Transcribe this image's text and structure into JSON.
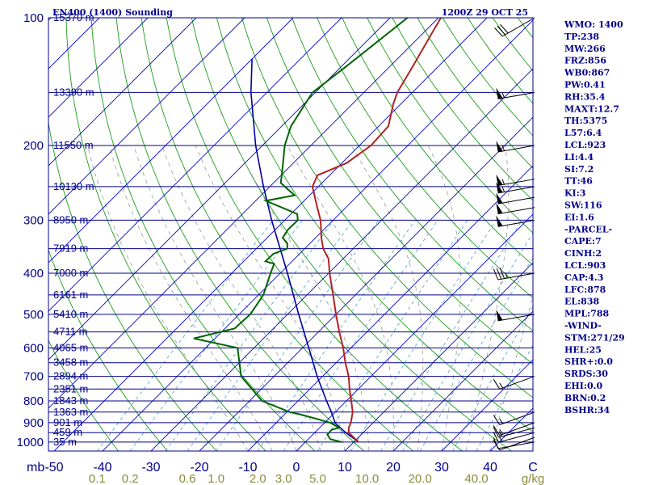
{
  "header": {
    "title": "EN400 (1400) Sounding",
    "time": "1200Z 29 OCT 25"
  },
  "colors": {
    "text": "#00008b",
    "isobar": "#00008b",
    "isotherm": "#0000cd",
    "dry_adiabat": "#1a9e1a",
    "mixing_ratio": "#5fa8d3",
    "moist_adiabat": "#8c8c8c",
    "temperature": "#b22222",
    "dewpoint": "#006400",
    "parcel": "#0000a0",
    "wind": "#000000",
    "mixing_label": "#8b8b3c"
  },
  "chart_data": {
    "type": "skew-t log-p",
    "title": "EN400 (1400) Sounding",
    "pressure_unit": "mb",
    "pressure_levels": [
      100,
      200,
      300,
      400,
      500,
      600,
      700,
      800,
      900,
      1000
    ],
    "height_labels": [
      {
        "p": 100,
        "label": "15370 m"
      },
      {
        "p": 150,
        "label": "13390 m"
      },
      {
        "p": 200,
        "label": "11550 m"
      },
      {
        "p": 250,
        "label": "10130 m"
      },
      {
        "p": 300,
        "label": "8950 m"
      },
      {
        "p": 350,
        "label": "7919 m"
      },
      {
        "p": 400,
        "label": "7000 m"
      },
      {
        "p": 450,
        "label": "6161 m"
      },
      {
        "p": 500,
        "label": "5410 m"
      },
      {
        "p": 550,
        "label": "4711 m"
      },
      {
        "p": 600,
        "label": "4065 m"
      },
      {
        "p": 650,
        "label": "3458 m"
      },
      {
        "p": 700,
        "label": "2894 m"
      },
      {
        "p": 750,
        "label": "2351 m"
      },
      {
        "p": 800,
        "label": "1843 m"
      },
      {
        "p": 850,
        "label": "1363 m"
      },
      {
        "p": 900,
        "label": "901 m"
      },
      {
        "p": 950,
        "label": "459 m"
      },
      {
        "p": 1000,
        "label": "35 m"
      }
    ],
    "temperature_ticks": [
      -50,
      -40,
      -30,
      -20,
      -10,
      0,
      10,
      20,
      30,
      40
    ],
    "temperature_tick_labels": [
      "-50",
      "-40",
      "-30",
      "-20",
      "-10",
      "0",
      "10",
      "20",
      "30",
      "40"
    ],
    "mixing_ratio_ticks": [
      {
        "value": 0.1,
        "label": "0.1"
      },
      {
        "value": 0.2,
        "label": "0.2"
      },
      {
        "value": 0.6,
        "label": "0.6"
      },
      {
        "value": 1.0,
        "label": "1.0"
      },
      {
        "value": 2.0,
        "label": "2.0"
      },
      {
        "value": 3.0,
        "label": "3.0"
      },
      {
        "value": 5.0,
        "label": "5.0"
      },
      {
        "value": 10.0,
        "label": "10.0"
      },
      {
        "value": 20.0,
        "label": "20.0"
      },
      {
        "value": 40.0,
        "label": "40.0"
      }
    ],
    "mixing_unit": "g/kg",
    "pressure_unit_label": "mb",
    "corner_label": "C",
    "x_axis": "temperature (°C), skewed",
    "y_axis": "pressure (mb), log scale",
    "temperature": [
      {
        "p": 1000,
        "t": 11.0
      },
      {
        "p": 975,
        "t": 9.0
      },
      {
        "p": 950,
        "t": 7.0
      },
      {
        "p": 925,
        "t": 6.0
      },
      {
        "p": 900,
        "t": 5.4
      },
      {
        "p": 850,
        "t": 3.6
      },
      {
        "p": 800,
        "t": 1.0
      },
      {
        "p": 750,
        "t": -1.8
      },
      {
        "p": 700,
        "t": -4.6
      },
      {
        "p": 650,
        "t": -8.1
      },
      {
        "p": 600,
        "t": -11.6
      },
      {
        "p": 550,
        "t": -15.7
      },
      {
        "p": 500,
        "t": -20.0
      },
      {
        "p": 450,
        "t": -24.6
      },
      {
        "p": 400,
        "t": -29.8
      },
      {
        "p": 370,
        "t": -33.0
      },
      {
        "p": 350,
        "t": -36.2
      },
      {
        "p": 330,
        "t": -38.8
      },
      {
        "p": 300,
        "t": -42.6
      },
      {
        "p": 280,
        "t": -45.9
      },
      {
        "p": 250,
        "t": -51.2
      },
      {
        "p": 235,
        "t": -52.5
      },
      {
        "p": 220,
        "t": -49.0
      },
      {
        "p": 200,
        "t": -47.6
      },
      {
        "p": 180,
        "t": -48.0
      },
      {
        "p": 160,
        "t": -51.5
      },
      {
        "p": 150,
        "t": -53.1
      },
      {
        "p": 130,
        "t": -55.3
      },
      {
        "p": 110,
        "t": -58.0
      },
      {
        "p": 100,
        "t": -59.5
      }
    ],
    "dewpoint": [
      {
        "p": 1000,
        "t": 7.5
      },
      {
        "p": 985,
        "t": 4.6
      },
      {
        "p": 960,
        "t": 3.0
      },
      {
        "p": 935,
        "t": 2.9
      },
      {
        "p": 925,
        "t": 4.0
      },
      {
        "p": 900,
        "t": 1.1
      },
      {
        "p": 880,
        "t": -2.8
      },
      {
        "p": 860,
        "t": -6.9
      },
      {
        "p": 850,
        "t": -9.4
      },
      {
        "p": 800,
        "t": -17.4
      },
      {
        "p": 700,
        "t": -26.8
      },
      {
        "p": 600,
        "t": -33.4
      },
      {
        "p": 570,
        "t": -44.4
      },
      {
        "p": 540,
        "t": -38.0
      },
      {
        "p": 500,
        "t": -37.7
      },
      {
        "p": 450,
        "t": -39.0
      },
      {
        "p": 400,
        "t": -42.0
      },
      {
        "p": 380,
        "t": -43.2
      },
      {
        "p": 375,
        "t": -45.5
      },
      {
        "p": 360,
        "t": -45.4
      },
      {
        "p": 350,
        "t": -43.6
      },
      {
        "p": 340,
        "t": -44.7
      },
      {
        "p": 330,
        "t": -46.8
      },
      {
        "p": 315,
        "t": -47.4
      },
      {
        "p": 300,
        "t": -47.3
      },
      {
        "p": 290,
        "t": -48.7
      },
      {
        "p": 270,
        "t": -57.9
      },
      {
        "p": 262,
        "t": -53.1
      },
      {
        "p": 245,
        "t": -58.5
      },
      {
        "p": 230,
        "t": -60.6
      },
      {
        "p": 200,
        "t": -65.4
      },
      {
        "p": 180,
        "t": -68.1
      },
      {
        "p": 150,
        "t": -70.6
      },
      {
        "p": 130,
        "t": -69.0
      },
      {
        "p": 100,
        "t": -66.4
      }
    ],
    "parcel": [
      {
        "p": 1000,
        "t": 11.0
      },
      {
        "p": 950,
        "t": 6.4
      },
      {
        "p": 903,
        "t": 2.3
      },
      {
        "p": 850,
        "t": -0.8
      },
      {
        "p": 800,
        "t": -4.1
      },
      {
        "p": 700,
        "t": -11.1
      },
      {
        "p": 600,
        "t": -18.7
      },
      {
        "p": 500,
        "t": -27.7
      },
      {
        "p": 400,
        "t": -38.5
      },
      {
        "p": 300,
        "t": -52.7
      },
      {
        "p": 250,
        "t": -61.3
      },
      {
        "p": 200,
        "t": -71.4
      },
      {
        "p": 150,
        "t": -83.3
      },
      {
        "p": 125,
        "t": -90.0
      }
    ],
    "winds": [
      {
        "p": 1000,
        "dir": 260,
        "spd": 10
      },
      {
        "p": 975,
        "dir": 250,
        "spd": 10
      },
      {
        "p": 950,
        "dir": 255,
        "spd": 15
      },
      {
        "p": 925,
        "dir": 255,
        "spd": 15
      },
      {
        "p": 900,
        "dir": 250,
        "spd": 15
      },
      {
        "p": 850,
        "dir": 250,
        "spd": 15
      },
      {
        "p": 700,
        "dir": 250,
        "spd": 15
      },
      {
        "p": 500,
        "dir": 260,
        "spd": 50
      },
      {
        "p": 400,
        "dir": 260,
        "spd": 35
      },
      {
        "p": 300,
        "dir": 260,
        "spd": 50
      },
      {
        "p": 280,
        "dir": 260,
        "spd": 50
      },
      {
        "p": 265,
        "dir": 260,
        "spd": 50
      },
      {
        "p": 250,
        "dir": 260,
        "spd": 55
      },
      {
        "p": 240,
        "dir": 260,
        "spd": 55
      },
      {
        "p": 200,
        "dir": 260,
        "spd": 55
      },
      {
        "p": 150,
        "dir": 260,
        "spd": 55
      },
      {
        "p": 100,
        "dir": 240,
        "spd": 30
      }
    ]
  },
  "indices": [
    "WMO: 1400",
    "TP:238",
    "MW:266",
    "FRZ:856",
    "WB0:867",
    "PW:0.41",
    "RH:35.4",
    "MAXT:12.7",
    "TH:5375",
    "L57:6.4",
    "LCL:923",
    "LI:4.4",
    "SI:7.2",
    "TT:46",
    "KI:3",
    "SW:116",
    "EI:1.6",
    "-PARCEL-",
    "CAPE:7",
    "CINH:2",
    "LCL:903",
    "CAP:4.3",
    "LFC:878",
    "EL:838",
    "MPL:788",
    "-WIND-",
    "STM:271/29",
    "HEL:25",
    "SHR+:0.0",
    "SRDS:30",
    "EHI:0.0",
    "BRN:0.2",
    "BSHR:34"
  ]
}
